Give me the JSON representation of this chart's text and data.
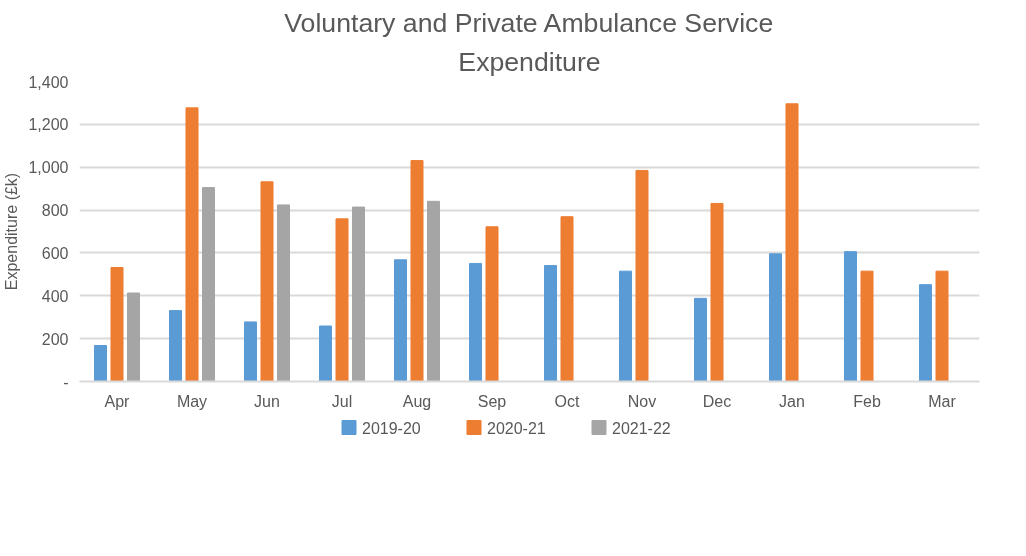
{
  "chart_data": {
    "type": "bar",
    "title": "Voluntary and Private Ambulance Service Expenditure",
    "ylabel": "Expenditure (£k)",
    "categories": [
      "Apr",
      "May",
      "Jun",
      "Jul",
      "Aug",
      "Sep",
      "Oct",
      "Nov",
      "Dec",
      "Jan",
      "Feb",
      "Mar"
    ],
    "series": [
      {
        "name": "2019-20",
        "color": "#5b9bd5",
        "values": [
          168,
          331,
          278,
          259,
          568,
          551,
          541,
          515,
          388,
          596,
          606,
          452
        ]
      },
      {
        "name": "2020-21",
        "color": "#ed7d31",
        "values": [
          532,
          1277,
          932,
          759,
          1031,
          722,
          769,
          985,
          831,
          1296,
          515,
          515
        ]
      },
      {
        "name": "2021-22",
        "color": "#a5a5a5",
        "values": [
          413,
          905,
          824,
          814,
          841,
          null,
          null,
          null,
          null,
          null,
          null,
          null
        ]
      }
    ],
    "ylim": [
      0,
      1400
    ],
    "yticks": [
      {
        "value": 0,
        "label": "-"
      },
      {
        "value": 200,
        "label": "200"
      },
      {
        "value": 400,
        "label": "400"
      },
      {
        "value": 600,
        "label": "600"
      },
      {
        "value": 800,
        "label": "800"
      },
      {
        "value": 1000,
        "label": "1,000"
      },
      {
        "value": 1200,
        "label": "1,200"
      },
      {
        "value": 1400,
        "label": "1,400"
      }
    ],
    "grid": "y",
    "legend": "bottom"
  }
}
